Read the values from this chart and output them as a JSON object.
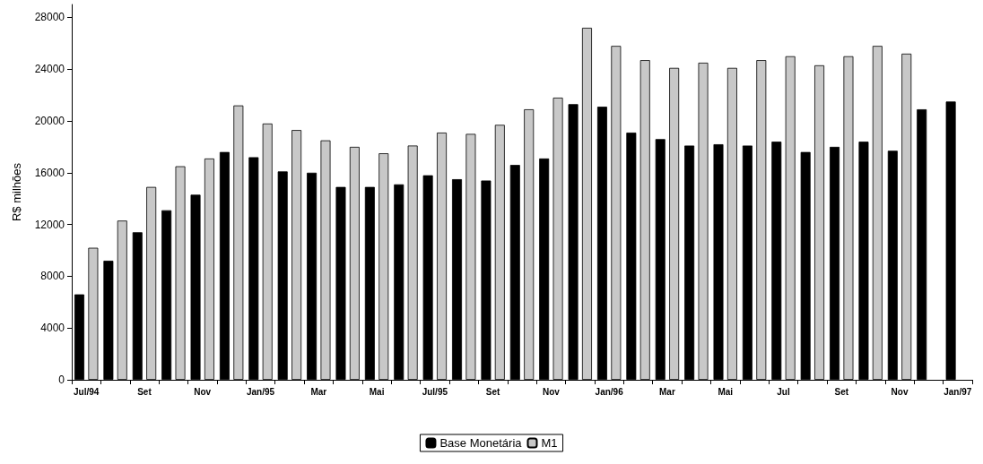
{
  "chart_data": {
    "type": "bar",
    "ylabel": "R$ milhões",
    "categories": [
      "Jul/94",
      null,
      "Set",
      null,
      "Nov",
      null,
      "Jan/95",
      null,
      "Mar",
      null,
      "Mai",
      null,
      "Jul/95",
      null,
      "Set",
      null,
      "Nov",
      null,
      "Jan/96",
      null,
      "Mar",
      null,
      "Mai",
      null,
      "Jul",
      null,
      "Set",
      null,
      "Nov",
      null,
      "Jan/97"
    ],
    "series": [
      {
        "name": "Base Monetária",
        "color": "#000000",
        "values": [
          6600,
          9200,
          11400,
          13100,
          14300,
          17600,
          17200,
          16100,
          16000,
          14900,
          14900,
          15100,
          15800,
          15500,
          15400,
          16600,
          17100,
          21300,
          21100,
          19100,
          18600,
          18100,
          18200,
          18100,
          18400,
          17600,
          18000,
          18400,
          17700,
          20900,
          21500
        ]
      },
      {
        "name": "M1",
        "color": "#c8c8c8",
        "values": [
          10200,
          12300,
          14900,
          16500,
          17100,
          21200,
          19800,
          19300,
          18500,
          18000,
          17500,
          18100,
          19100,
          19000,
          19700,
          20900,
          21800,
          27200,
          25800,
          24700,
          24100,
          24500,
          24100,
          24700,
          25000,
          24300,
          25000,
          25800,
          25200,
          null,
          null
        ]
      }
    ],
    "ylim": [
      0,
      29000
    ],
    "yticks": [
      0,
      4000,
      8000,
      12000,
      16000,
      20000,
      24000,
      28000
    ],
    "grid": false,
    "legend": "bottom"
  }
}
